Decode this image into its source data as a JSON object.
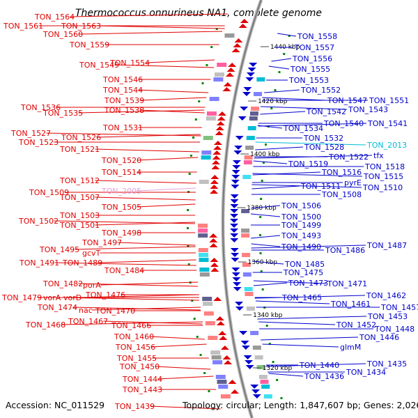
{
  "title": "Thermococcus onnurineus NA1, complete genome",
  "footer": {
    "accession": "Accession: NC_011529",
    "topology": "Topology: circular; Length: 1,847,607 bp; Genes: 2,026"
  },
  "colors": {
    "left": "#e00000",
    "right": "#0000cc",
    "highlight_right": "#00bcd4",
    "highlight_left": "#e0a0d8",
    "backbone": "#999999",
    "tick": "#008800"
  },
  "ticks": [
    "1440 kbp",
    "1420 kbp",
    "1400 kbp",
    "1380 kbp",
    "1360 kbp",
    "1340 kbp",
    "1320 kbp"
  ],
  "left_labels": [
    "TON_1564",
    "TON_1561",
    "TON_1563",
    "TON_1560",
    "TON_1559",
    "TON_1549",
    "TON_1554",
    "TON_1546",
    "TON_1544",
    "TON_1539",
    "TON_1536",
    "TON_1538",
    "TON_1535",
    "TON_1531",
    "TON_1527",
    "TON_1526",
    "TON_1523",
    "TON_1521",
    "TON_1520",
    "TON_1514",
    "TON_1512",
    "TON_2005",
    "TON_1509",
    "TON_1507",
    "TON_1505",
    "TON_1503",
    "TON_1502",
    "TON_1501",
    "TON_1498",
    "TON_1497",
    "TON_1495",
    "gcvT",
    "TON_1491",
    "TON_1489",
    "TON_1484",
    "TON_1482",
    "porA",
    "TON_1479",
    "vorA",
    "vorD",
    "TON_1476",
    "TON_1474",
    "nac",
    "TON_1470",
    "TON_1467",
    "TON_1468",
    "TON_1466",
    "TON_1460",
    "TON_1456",
    "TON_1455",
    "TON_1450",
    "TON_1444",
    "TON_1443",
    "TON_1439"
  ],
  "right_labels": [
    "TON_1558",
    "TON_1557",
    "TON_1556",
    "TON_1555",
    "TON_1553",
    "TON_1552",
    "TON_1547",
    "TON_1551",
    "TON_1542",
    "TON_1543",
    "TON_1540",
    "TON_1541",
    "TON_1534",
    "TON_1532",
    "TON_1528",
    "TON_2013",
    "TON_1522",
    "tfx",
    "TON_1519",
    "TON_1518",
    "TON_1516",
    "TON_1515",
    "pyrE",
    "TON_1511",
    "TON_1510",
    "TON_1508",
    "TON_1506",
    "TON_1500",
    "TON_1499",
    "TON_1493",
    "TON_1490",
    "TON_1486",
    "TON_1487",
    "TON_1485",
    "TON_1475",
    "TON_1473",
    "TON_1471",
    "TON_1465",
    "TON_1462",
    "TON_1461",
    "TON_1457",
    "TON_1453",
    "TON_1452",
    "TON_1448",
    "TON_1446",
    "glmM",
    "TON_1440",
    "TON_1435",
    "TON_1436",
    "TON_1434"
  ]
}
